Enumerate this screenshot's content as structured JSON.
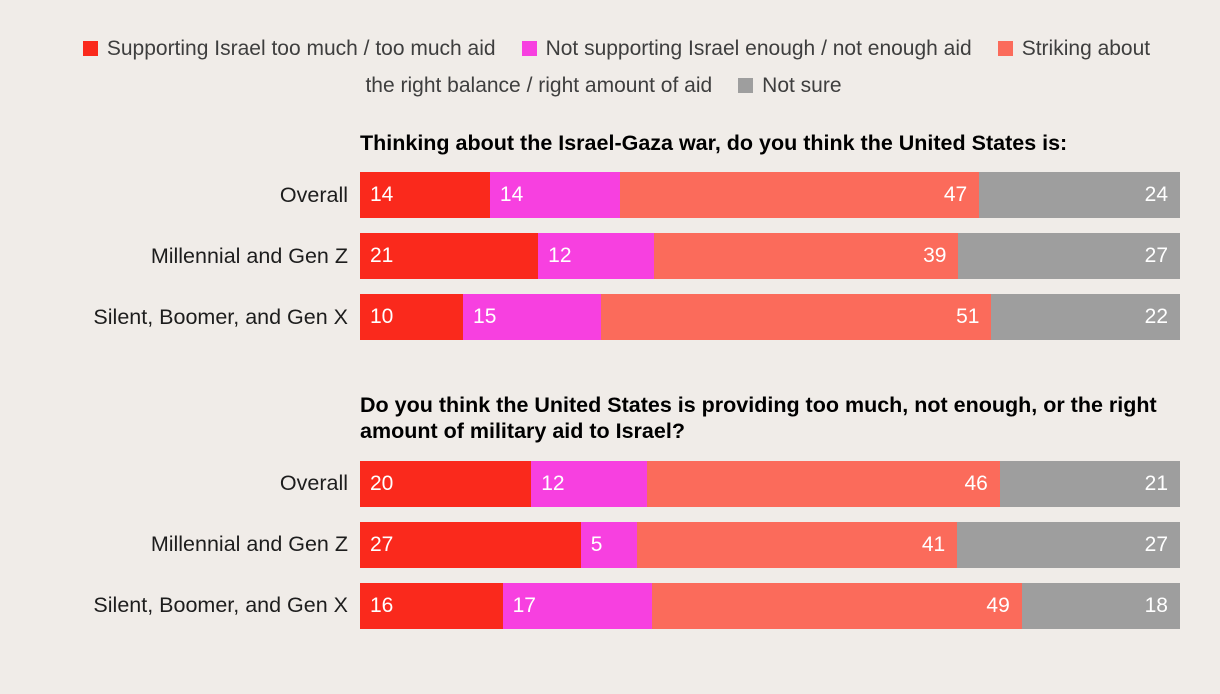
{
  "colors": {
    "background": "#f0ece8",
    "too_much": "#fa291c",
    "not_enough": "#f740e0",
    "right_balance": "#fb6b5b",
    "not_sure": "#9e9e9e"
  },
  "legend": {
    "items": [
      {
        "label": "Supporting Israel too much / too much aid",
        "color": "#fa291c"
      },
      {
        "label": "Not supporting Israel enough / not enough aid",
        "color": "#f740e0"
      },
      {
        "label": "Striking about the right balance / right amount of aid",
        "color": "#fb6b5b"
      },
      {
        "label": "Not sure",
        "color": "#9e9e9e"
      }
    ]
  },
  "chart_data": [
    {
      "type": "bar",
      "orientation": "horizontal",
      "stacked": true,
      "title": "Thinking about the Israel-Gaza war, do you think the United States is:",
      "categories": [
        "Overall",
        "Millennial and Gen Z",
        "Silent, Boomer, and Gen X"
      ],
      "series": [
        {
          "name": "Supporting Israel too much / too much aid",
          "color": "#fa291c",
          "values": [
            14,
            21,
            10
          ]
        },
        {
          "name": "Not supporting Israel enough / not enough aid",
          "color": "#f740e0",
          "values": [
            14,
            12,
            15
          ]
        },
        {
          "name": "Striking about the right balance / right amount of aid",
          "color": "#fb6b5b",
          "values": [
            47,
            39,
            51
          ]
        },
        {
          "name": "Not sure",
          "color": "#9e9e9e",
          "values": [
            24,
            27,
            22
          ]
        }
      ],
      "xlim": [
        0,
        100
      ],
      "value_labels": "inside",
      "legend_position": "top"
    },
    {
      "type": "bar",
      "orientation": "horizontal",
      "stacked": true,
      "title": "Do you think the United States is providing too much, not enough, or the right amount of military aid to Israel?",
      "categories": [
        "Overall",
        "Millennial and Gen Z",
        "Silent, Boomer, and Gen X"
      ],
      "series": [
        {
          "name": "Supporting Israel too much / too much aid",
          "color": "#fa291c",
          "values": [
            20,
            27,
            16
          ]
        },
        {
          "name": "Not supporting Israel enough / not enough aid",
          "color": "#f740e0",
          "values": [
            12,
            5,
            17
          ]
        },
        {
          "name": "Striking about the right balance / right amount of aid",
          "color": "#fb6b5b",
          "values": [
            46,
            41,
            49
          ]
        },
        {
          "name": "Not sure",
          "color": "#9e9e9e",
          "values": [
            21,
            27,
            18
          ]
        }
      ],
      "xlim": [
        0,
        100
      ],
      "value_labels": "inside",
      "legend_position": "top"
    }
  ]
}
